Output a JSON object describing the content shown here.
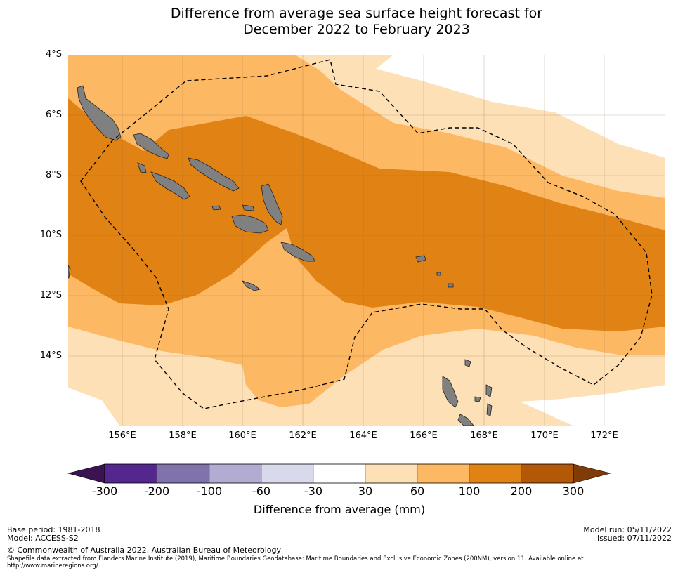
{
  "title": {
    "line1": "Difference from average sea surface height forecast for",
    "line2": "December 2022 to February 2023"
  },
  "axes": {
    "lat_labels": [
      "4°S",
      "6°S",
      "8°S",
      "10°S",
      "12°S",
      "14°S"
    ],
    "lon_labels": [
      "156°E",
      "158°E",
      "160°E",
      "162°E",
      "164°E",
      "166°E",
      "168°E",
      "170°E",
      "172°E"
    ]
  },
  "colorbar": {
    "label": "Difference from average (mm)",
    "ticks": [
      "-300",
      "-200",
      "-100",
      "-60",
      "-30",
      "30",
      "60",
      "100",
      "200",
      "300"
    ],
    "colors": {
      "below_-300": "#3a1450",
      "-300_-200": "#54278f",
      "-200_-100": "#8073ac",
      "-100_-60": "#b2abd2",
      "-60_-30": "#d8daeb",
      "-30_30": "#ffffff",
      "30_60": "#fee0b6",
      "60_100": "#fdb863",
      "100_200": "#e08214",
      "200_300": "#b35806",
      "above_300": "#7f3b08"
    }
  },
  "footer": {
    "base_period": "Base period: 1981-2018",
    "model": "Model: ACCESS-S2",
    "copyright": "© Commonwealth of Australia 2022, Australian Bureau of Meteorology",
    "shapefile": "Shapefile data extracted from Flanders Marine Institute (2019), Maritime Boundaries Geodatabase: Maritime Boundaries and Exclusive Economic Zones (200NM), version 11. Available online at",
    "url": "http://www.marineregions.org/.",
    "model_run": "Model run: 05/11/2022",
    "issued": "Issued: 07/11/2022"
  }
}
